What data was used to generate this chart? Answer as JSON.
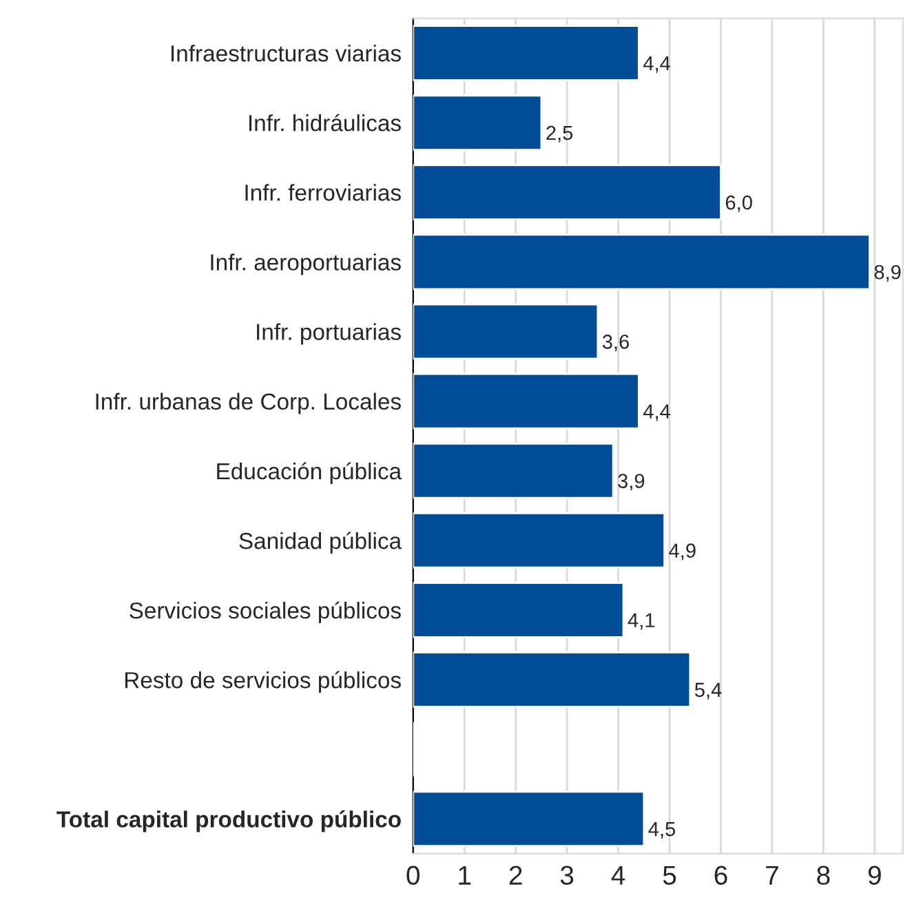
{
  "chart_data": {
    "type": "bar",
    "orientation": "horizontal",
    "categories": [
      "Infraestructuras viarias",
      "Infr. hidráulicas",
      "Infr. ferroviarias",
      "Infr. aeroportuarias",
      "Infr. portuarias",
      "Infr. urbanas de Corp. Locales",
      "Educación pública",
      "Sanidad pública",
      "Servicios sociales públicos",
      "Resto de servicios públicos",
      null,
      "Total capital productivo público"
    ],
    "values": [
      4.4,
      2.5,
      6.0,
      8.9,
      3.6,
      4.4,
      3.9,
      4.9,
      4.1,
      5.4,
      null,
      4.5
    ],
    "value_labels": [
      "4,4",
      "2,5",
      "6,0",
      "8,9",
      "3,6",
      "4,4",
      "3,9",
      "4,9",
      "4,1",
      "5,4",
      null,
      "4,5"
    ],
    "color": "#004c97",
    "xlim": [
      0,
      9.55
    ],
    "xticks": [
      0,
      1,
      2,
      3,
      4,
      5,
      6,
      7,
      8,
      9
    ],
    "grid": "x"
  }
}
